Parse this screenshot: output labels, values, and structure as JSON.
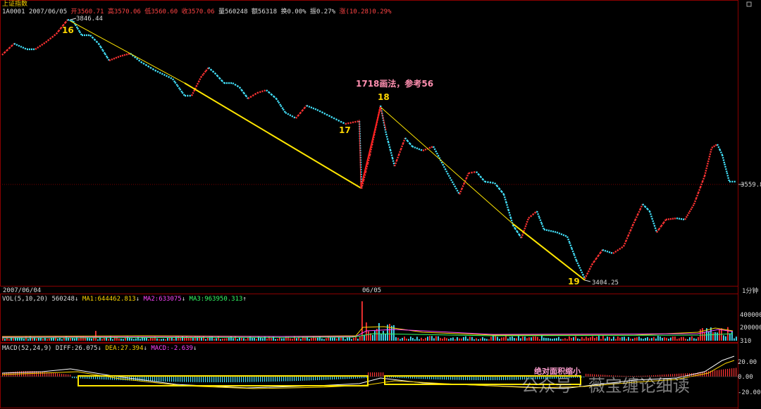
{
  "header": {
    "index_name": "上证指数",
    "line1": {
      "code": "1A0001",
      "date": "2007/06/05",
      "open": "开3560.71",
      "high": "高3570.06",
      "low": "低3560.60",
      "close": "收3570.06",
      "volume": "量560248",
      "amount": "额56318",
      "turnover": "换0.00%",
      "amplitude": "振0.27%",
      "change": "涨(10.28)0.29%"
    }
  },
  "price_axis": {
    "last_price_label": "3559.8",
    "timeframe": "1分钟"
  },
  "time_axis": {
    "start": "2007/06/04",
    "mid": "06/05"
  },
  "volume_panel": {
    "label": "VOL(5,10,20)",
    "value": "560248",
    "ma1": "MA1:644462.813",
    "ma2": "MA2:633075",
    "ma3": "MA3:963950.313",
    "ticks": [
      "400000",
      "200000",
      "310"
    ]
  },
  "macd_panel": {
    "label": "MACD(52,24,9)",
    "diff": "DIFF:26.075",
    "dea": "DEA:27.394",
    "macd": "MACD:-2.639",
    "ticks": [
      "20.00",
      "0.00",
      "-20.00"
    ],
    "annotation": "绝对面积缩小"
  },
  "annotations": {
    "p16": "16",
    "p17": "17",
    "p18": "18",
    "p19": "19",
    "high_label": "3846.44",
    "low_label": "3404.25",
    "note": "1718画法，参考56"
  },
  "watermark": "公众号 · 薇宝缠论细读",
  "colors": {
    "up": "#ff3333",
    "down": "#44e5ff",
    "line": "#ffe600",
    "bg": "#000000"
  },
  "chart_data": {
    "type": "line",
    "title": "上证指数 1分钟",
    "x": [
      "2007/06/04",
      "06/05"
    ],
    "price_points": [
      {
        "label": "16",
        "value": 3846.44
      },
      {
        "label": "17",
        "value": 3610
      },
      {
        "label": "18",
        "value": 3745
      },
      {
        "label": "19",
        "value": 3404.25
      }
    ],
    "last_price": 3559.8,
    "macd": {
      "diff": 26.075,
      "dea": 27.394,
      "macd": -2.639
    }
  }
}
